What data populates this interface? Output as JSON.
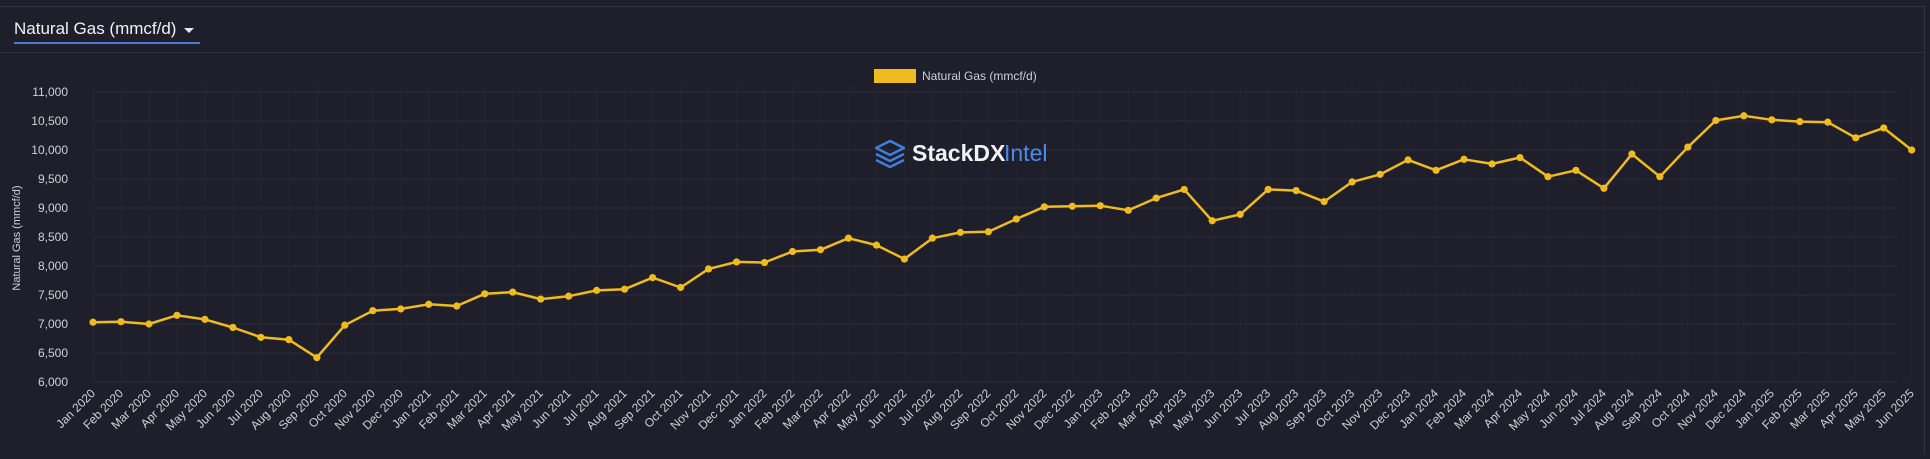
{
  "selector": {
    "label": "Natural Gas (mmcf/d)"
  },
  "watermark": {
    "text_main": "StackDX",
    "text_accent": "Intel",
    "icon": "stacked-layers-icon"
  },
  "colors": {
    "series": "#f0bb1d",
    "accent": "#4a7bd4",
    "background": "#1f1f2b",
    "grid": "#2c2c38"
  },
  "chart_data": {
    "type": "line",
    "title": "",
    "xlabel": "",
    "ylabel": "Natural Gas (mmcf/d)",
    "ylim": [
      6000,
      11000
    ],
    "yticks": [
      6000,
      6500,
      7000,
      7500,
      8000,
      8500,
      9000,
      9500,
      10000,
      10500,
      11000
    ],
    "ytick_labels": [
      "6,000",
      "6,500",
      "7,000",
      "7,500",
      "8,000",
      "8,500",
      "9,000",
      "9,500",
      "10,000",
      "10,500",
      "11,000"
    ],
    "grid": true,
    "legend": {
      "position": "top-center",
      "entries": [
        "Natural Gas (mmcf/d)"
      ]
    },
    "categories": [
      "Jan 2020",
      "Feb 2020",
      "Mar 2020",
      "Apr 2020",
      "May 2020",
      "Jun 2020",
      "Jul 2020",
      "Aug 2020",
      "Sep 2020",
      "Oct 2020",
      "Nov 2020",
      "Dec 2020",
      "Jan 2021",
      "Feb 2021",
      "Mar 2021",
      "Apr 2021",
      "May 2021",
      "Jun 2021",
      "Jul 2021",
      "Aug 2021",
      "Sep 2021",
      "Oct 2021",
      "Nov 2021",
      "Dec 2021",
      "Jan 2022",
      "Feb 2022",
      "Mar 2022",
      "Apr 2022",
      "May 2022",
      "Jun 2022",
      "Jul 2022",
      "Aug 2022",
      "Sep 2022",
      "Oct 2022",
      "Nov 2022",
      "Dec 2022",
      "Jan 2023",
      "Feb 2023",
      "Mar 2023",
      "Apr 2023",
      "May 2023",
      "Jun 2023",
      "Jul 2023",
      "Aug 2023",
      "Sep 2023",
      "Oct 2023",
      "Nov 2023",
      "Dec 2023",
      "Jan 2024",
      "Feb 2024",
      "Mar 2024",
      "Apr 2024",
      "May 2024",
      "Jun 2024",
      "Jul 2024",
      "Aug 2024",
      "Sep 2024",
      "Oct 2024",
      "Nov 2024",
      "Dec 2024",
      "Jan 2025",
      "Feb 2025",
      "Mar 2025",
      "Apr 2025",
      "May 2025",
      "Jun 2025"
    ],
    "series": [
      {
        "name": "Natural Gas (mmcf/d)",
        "values": [
          7030,
          7040,
          7000,
          7150,
          7080,
          6940,
          6770,
          6730,
          6420,
          6980,
          7230,
          7260,
          7340,
          7310,
          7520,
          7550,
          7430,
          7480,
          7580,
          7600,
          7800,
          7630,
          7950,
          8070,
          8060,
          8250,
          8280,
          8480,
          8360,
          8120,
          8480,
          8580,
          8590,
          8810,
          9020,
          9030,
          9040,
          8960,
          9170,
          9320,
          8780,
          8890,
          9320,
          9300,
          9110,
          9450,
          9580,
          9830,
          9650,
          9840,
          9760,
          9870,
          9540,
          9650,
          9340,
          9930,
          9540,
          10050,
          10510,
          10590,
          10520,
          10490,
          10480,
          10210,
          10380,
          10000
        ]
      }
    ]
  }
}
